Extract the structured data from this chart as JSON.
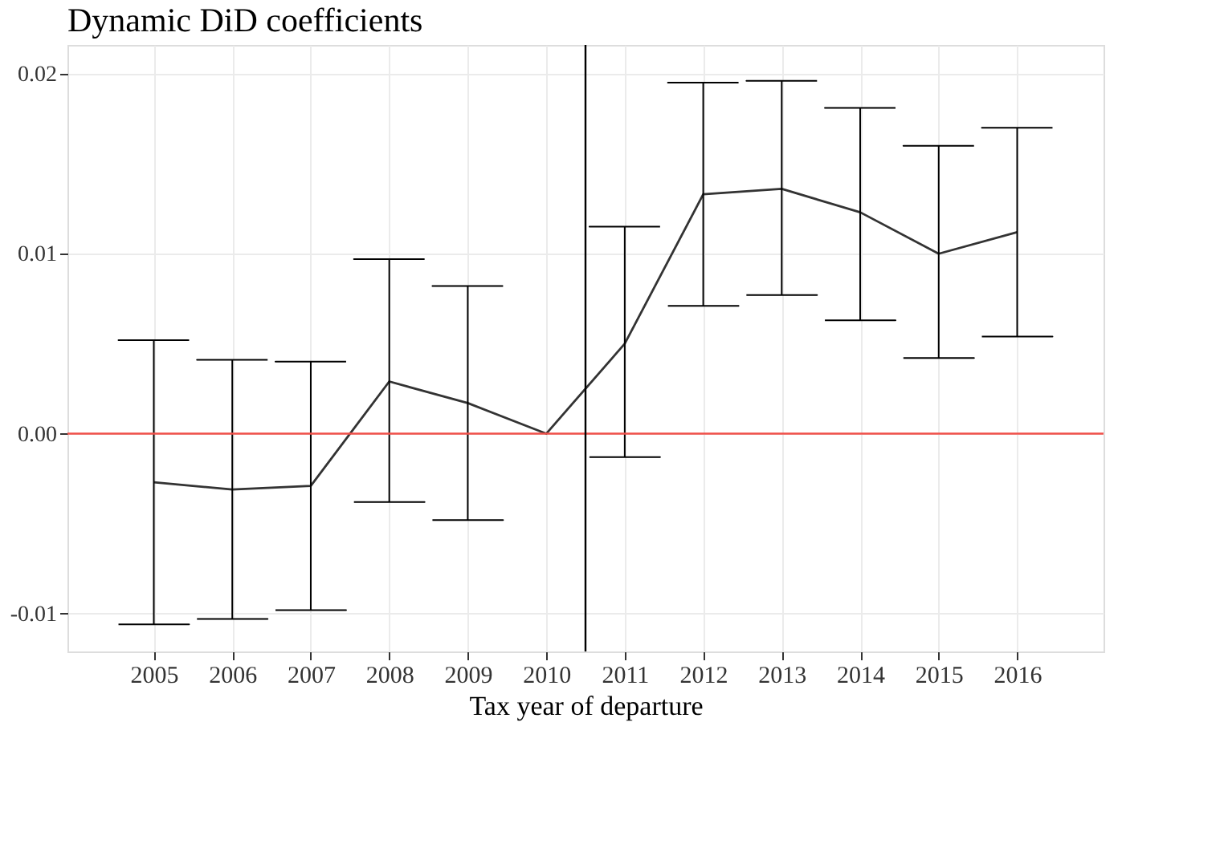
{
  "chart_data": {
    "type": "line",
    "title": "Dynamic DiD coefficients",
    "xlabel": "Tax year of departure",
    "x": [
      2005,
      2006,
      2007,
      2008,
      2009,
      2010,
      2011,
      2012,
      2013,
      2014,
      2015,
      2016
    ],
    "color": "#333333",
    "values": [
      -0.0027,
      -0.0031,
      -0.0029,
      0.0029,
      0.0017,
      0,
      0.005,
      0.0133,
      0.0136,
      0.0123,
      0.01,
      0.0112
    ],
    "errors": [
      [
        -0.0106,
        0.0052
      ],
      [
        -0.0103,
        0.0041
      ],
      [
        -0.0098,
        0.004
      ],
      [
        -0.0038,
        0.0097
      ],
      [
        -0.0048,
        0.0082
      ],
      null,
      [
        -0.0013,
        0.0115
      ],
      [
        0.0071,
        0.0195
      ],
      [
        0.0077,
        0.0196
      ],
      [
        0.0063,
        0.0181
      ],
      [
        0.0042,
        0.016
      ],
      [
        0.0054,
        0.017
      ]
    ],
    "xlim": [
      2003.9,
      2017.1
    ],
    "xticks": [
      2005,
      2006,
      2007,
      2008,
      2009,
      2010,
      2011,
      2012,
      2013,
      2014,
      2015,
      2016
    ],
    "ylim": [
      -0.0121,
      0.0216
    ],
    "yticks": [
      {
        "value": -0.01,
        "label": "-0.01"
      },
      {
        "value": 0,
        "label": "0.00"
      },
      {
        "value": 0.01,
        "label": "0.01"
      },
      {
        "value": 0.02,
        "label": "0.02"
      }
    ],
    "ref_lines": [
      {
        "axis": "y",
        "value": 0,
        "color": "#f0504a"
      },
      {
        "axis": "x",
        "value": 2010.5,
        "color": "#000000"
      }
    ],
    "grid": true,
    "marker": "none",
    "line_style": "solid"
  }
}
